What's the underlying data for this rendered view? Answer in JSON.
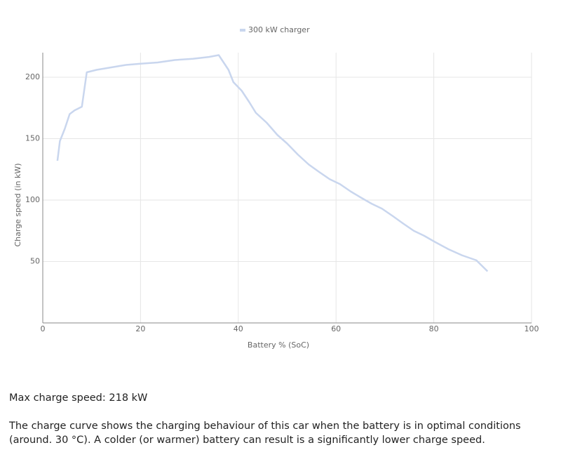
{
  "chart_data": {
    "type": "line",
    "xlabel": "Battery % (SoC)",
    "ylabel": "Charge speed (in kW)",
    "x": [
      3,
      3.5,
      4.5,
      5.5,
      6.5,
      8,
      9,
      11,
      14,
      17,
      20,
      23.5,
      27,
      30.7,
      34,
      36,
      37,
      38,
      39,
      40.7,
      42.2,
      43.6,
      45.8,
      48,
      50,
      52.2,
      54.4,
      56.5,
      58.7,
      60.8,
      63,
      65.1,
      67.3,
      69.4,
      71.6,
      73.7,
      75.9,
      78,
      80.2,
      83,
      85.8,
      88.7,
      91
    ],
    "series": [
      {
        "name": "300 kW charger",
        "color": "#c9d6ee",
        "values": [
          132,
          148,
          158,
          170,
          173,
          176,
          204,
          206,
          208,
          210,
          211,
          212,
          214,
          215,
          216.5,
          218,
          212,
          206,
          196,
          189,
          180,
          171,
          163,
          153,
          146,
          137,
          129,
          123,
          117,
          113,
          107,
          102,
          97,
          93,
          87,
          81,
          75,
          71,
          66,
          60,
          55,
          51,
          42
        ]
      }
    ],
    "xlim": [
      0,
      100
    ],
    "ylim": [
      0,
      220
    ],
    "xticks": [
      0,
      20,
      40,
      60,
      80,
      100
    ],
    "yticks": [
      50,
      100,
      150,
      200
    ],
    "grid": true
  },
  "text": {
    "max_charge": "Max charge speed: 218 kW",
    "description": "The charge curve shows the charging behaviour of this car when the battery is in optimal conditions (around. 30 °C). A colder (or warmer) battery can result is a significantly lower charge speed."
  }
}
